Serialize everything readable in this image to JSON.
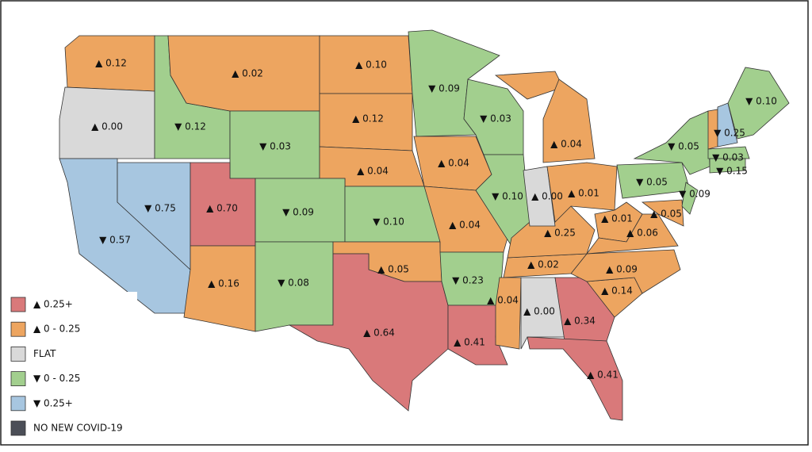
{
  "legend": [
    {
      "label": "▲ 0.25+",
      "color": "#d9797a"
    },
    {
      "label": "▲ 0 - 0.25",
      "color": "#eda560"
    },
    {
      "label": "FLAT",
      "color": "#d9d9d9"
    },
    {
      "label": "▼ 0 - 0.25",
      "color": "#a2cf8e"
    },
    {
      "label": "▼ 0.25+",
      "color": "#a7c6e0"
    },
    {
      "label": "NO NEW COVID-19",
      "color": "#4b4e57"
    }
  ],
  "regions": [
    {
      "label": "▲ 0.12",
      "color": "#eda560"
    },
    {
      "label": "▲ 0.00",
      "color": "#d9d9d9"
    },
    {
      "label": "▼ 0.12",
      "color": "#a2cf8e"
    },
    {
      "label": "▲ 0.02",
      "color": "#eda560"
    },
    {
      "label": "▼ 0.03",
      "color": "#a2cf8e"
    },
    {
      "label": "▲ 0.10",
      "color": "#eda560"
    },
    {
      "label": "▲ 0.12",
      "color": "#eda560"
    },
    {
      "label": "▲ 0.04",
      "color": "#eda560"
    },
    {
      "label": "▼ 0.57",
      "color": "#a7c6e0"
    },
    {
      "label": "▼ 0.75",
      "color": "#a7c6e0"
    },
    {
      "label": "▲ 0.70",
      "color": "#d9797a"
    },
    {
      "label": "▼ 0.09",
      "color": "#a2cf8e"
    },
    {
      "label": "▲ 0.16",
      "color": "#eda560"
    },
    {
      "label": "▼ 0.08",
      "color": "#a2cf8e"
    },
    {
      "label": "▼ 0.10",
      "color": "#a2cf8e"
    },
    {
      "label": "▲ 0.05",
      "color": "#eda560"
    },
    {
      "label": "▲ 0.64",
      "color": "#d9797a"
    },
    {
      "label": "▼ 0.09",
      "color": "#a2cf8e"
    },
    {
      "label": "▲ 0.04",
      "color": "#eda560"
    },
    {
      "label": "▲ 0.04",
      "color": "#eda560"
    },
    {
      "label": "▼ 0.03",
      "color": "#a2cf8e"
    },
    {
      "label": "▼ 0.10",
      "color": "#a2cf8e"
    },
    {
      "label": "▼ 0.23",
      "color": "#a2cf8e"
    },
    {
      "label": "▲ 0.41",
      "color": "#d9797a"
    },
    {
      "label": "▲ 0.04",
      "color": "#eda560"
    },
    {
      "label": "▲ 0.00",
      "color": "#d9d9d9"
    },
    {
      "label": "▲ 0.34",
      "color": "#d9797a"
    },
    {
      "label": "▲ 0.41",
      "color": "#d9797a"
    },
    {
      "label": "▲ 0.14",
      "color": "#eda560"
    },
    {
      "label": "▲ 0.09",
      "color": "#eda560"
    },
    {
      "label": "▲ 0.02",
      "color": "#eda560"
    },
    {
      "label": "▲ 0.25",
      "color": "#eda560"
    },
    {
      "label": "▲ 0.00",
      "color": "#d9d9d9"
    },
    {
      "label": "▲ 0.01",
      "color": "#eda560"
    },
    {
      "label": "▲ 0.04",
      "color": "#eda560"
    },
    {
      "label": "▲ 0.01",
      "color": "#eda560"
    },
    {
      "label": "▲ 0.06",
      "color": "#eda560"
    },
    {
      "label": "▲ 0.05",
      "color": "#eda560"
    },
    {
      "label": "▼ 0.05",
      "color": "#a2cf8e"
    },
    {
      "label": "▼ 0.09",
      "color": "#a2cf8e"
    },
    {
      "label": "▼ 0.05",
      "color": "#a2cf8e"
    },
    {
      "label": null,
      "color": "#eda560"
    },
    {
      "label": "▼ 0.25",
      "color": "#a7c6e0"
    },
    {
      "label": "▼ 0.10",
      "color": "#a2cf8e"
    },
    {
      "label": "▼ 0.03",
      "color": "#a2cf8e"
    },
    {
      "label": "▼ 0.15",
      "color": "#a2cf8e"
    }
  ]
}
